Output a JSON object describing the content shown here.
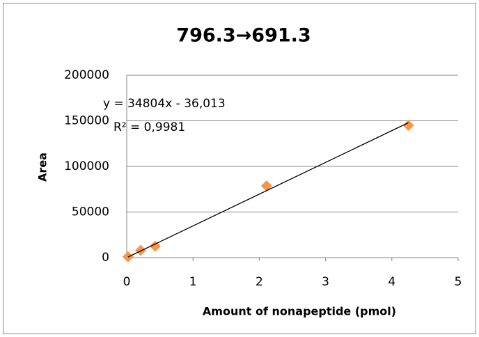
{
  "chart_data": {
    "type": "scatter",
    "title": "796.3→691.3",
    "x_label": "Amount of nonapeptide (pmol)",
    "y_label": "Area",
    "series": [
      {
        "x": [
          0.02,
          0.21,
          0.43,
          2.11,
          4.25
        ],
        "values": [
          1000,
          8000,
          12500,
          78600,
          145000
        ],
        "color": "#f79646"
      }
    ],
    "trendline": {
      "x": [
        0.02,
        4.25
      ],
      "values": [
        660,
        147900
      ],
      "color": "#000000"
    },
    "annotations": [
      "y = 34804x - 36,013",
      "R² = 0,9981"
    ],
    "xlim": [
      0,
      5
    ],
    "xticks": [
      0,
      1,
      2,
      3,
      4,
      5
    ],
    "ylim": [
      0,
      200000
    ],
    "yticks": [
      0,
      50000,
      100000,
      150000,
      200000
    ],
    "grid": true
  }
}
